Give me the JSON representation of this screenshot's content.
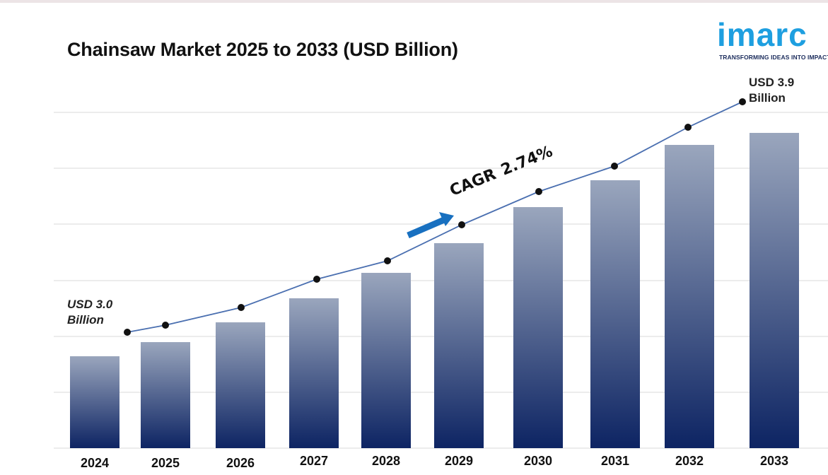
{
  "title": "Chainsaw Market 2025 to 2033 (USD Billion)",
  "logo": {
    "word": "imarc",
    "tagline": "TRANSFORMING IDEAS INTO IMPACT"
  },
  "annotations": {
    "start": "USD 3.0\nBillion",
    "end": "USD 3.9\nBillion",
    "cagr_prefix": "CAGR",
    "cagr_value": "2.74%"
  },
  "colors": {
    "bar_top": "#9aa6bd",
    "bar_bottom": "#0d2463",
    "line": "#4a6fb0",
    "marker": "#111111",
    "arrow": "#1870c0",
    "grid": "#d9d9d9",
    "logo": "#1e9fe0"
  },
  "chart_data": {
    "type": "bar",
    "title": "Chainsaw Market 2025 to 2033 (USD Billion)",
    "categories": [
      "2024",
      "2025",
      "2026",
      "2027",
      "2028",
      "2029",
      "2030",
      "2031",
      "2032",
      "2033"
    ],
    "series": [
      {
        "values": [
          3.0,
          3.08,
          3.17,
          3.26,
          3.35,
          3.44,
          3.53,
          3.63,
          3.73,
          3.9
        ],
        "render": "bar+line"
      }
    ],
    "grid": true,
    "axes_visible": false
  }
}
